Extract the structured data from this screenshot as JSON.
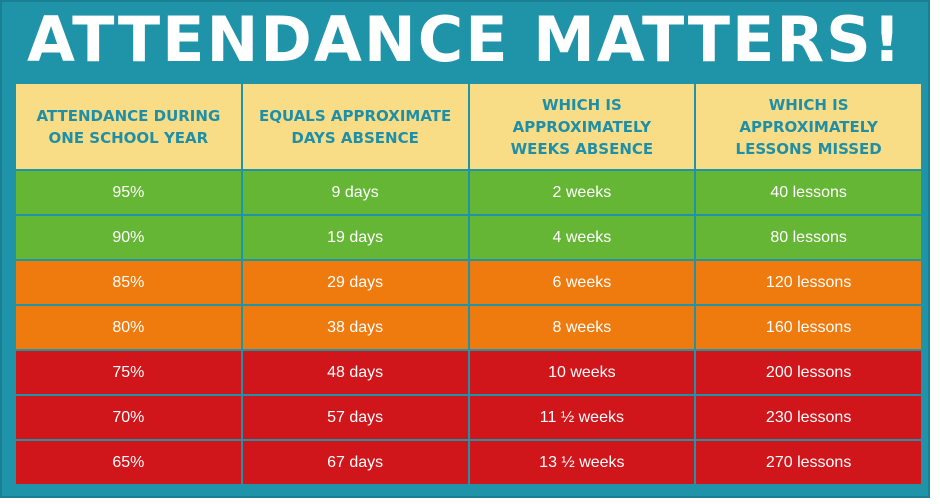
{
  "title": "ATTENDANCE MATTERS!",
  "headers": [
    "ATTENDANCE DURING\nONE SCHOOL YEAR",
    "EQUALS APPROXIMATE\nDAYS ABSENCE",
    "WHICH IS\nAPPROXIMATELY\nWEEKS ABSENCE",
    "WHICH IS\nAPPROXIMATELY\nLESSONS MISSED"
  ],
  "rows": [
    {
      "band": "green",
      "cells": [
        "95%",
        "9 days",
        "2 weeks",
        "40 lessons"
      ]
    },
    {
      "band": "green",
      "cells": [
        "90%",
        "19 days",
        "4 weeks",
        "80 lessons"
      ]
    },
    {
      "band": "orange",
      "cells": [
        "85%",
        "29 days",
        "6 weeks",
        "120 lessons"
      ]
    },
    {
      "band": "orange",
      "cells": [
        "80%",
        "38 days",
        "8 weeks",
        "160 lessons"
      ]
    },
    {
      "band": "red",
      "cells": [
        "75%",
        "48 days",
        "10 weeks",
        "200 lessons"
      ]
    },
    {
      "band": "red",
      "cells": [
        "70%",
        "57 days",
        "11 ½ weeks",
        "230 lessons"
      ]
    },
    {
      "band": "red",
      "cells": [
        "65%",
        "67 days",
        "13 ½ weeks",
        "270 lessons"
      ]
    }
  ],
  "colors": {
    "background": "#1f93a8",
    "header_fill": "#f9dd86",
    "header_text": "#1e8fa6",
    "green": "#66b636",
    "orange": "#ef7a0e",
    "red": "#d0151b"
  }
}
